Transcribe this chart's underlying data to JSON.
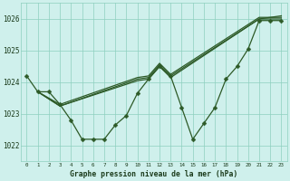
{
  "title": "Graphe pression niveau de la mer (hPa)",
  "background_color": "#cff0ec",
  "line_color": "#2d5a27",
  "grid_color": "#8ecfbf",
  "text_color": "#1a3a1a",
  "xlim_min": -0.5,
  "xlim_max": 23.5,
  "ylim_min": 1021.5,
  "ylim_max": 1026.5,
  "yticks": [
    1022,
    1023,
    1024,
    1025,
    1026
  ],
  "xticks": [
    0,
    1,
    2,
    3,
    4,
    5,
    6,
    7,
    8,
    9,
    10,
    11,
    12,
    13,
    14,
    15,
    16,
    17,
    18,
    19,
    20,
    21,
    22,
    23
  ],
  "series": [
    {
      "x": [
        0,
        1,
        2,
        3,
        4,
        5,
        6,
        7,
        8,
        9,
        10,
        11,
        12,
        13,
        14,
        15,
        16,
        17,
        18,
        19,
        20,
        21,
        22,
        23
      ],
      "y": [
        1024.2,
        1023.7,
        1023.7,
        1023.3,
        1022.8,
        1022.2,
        1022.2,
        1022.2,
        1022.65,
        1022.95,
        1023.65,
        1024.1,
        1024.5,
        1024.2,
        1023.2,
        1022.2,
        1022.7,
        1023.2,
        1024.1,
        1024.5,
        1025.05,
        1025.95,
        1025.95,
        1025.95
      ],
      "has_markers": true
    },
    {
      "x": [
        1,
        3,
        10,
        11,
        12,
        13,
        21,
        22,
        23
      ],
      "y": [
        1023.7,
        1023.25,
        1024.05,
        1024.1,
        1024.5,
        1024.15,
        1026.0,
        1026.0,
        1026.0
      ],
      "has_markers": false
    },
    {
      "x": [
        1,
        3,
        10,
        11,
        12,
        13,
        21,
        22,
        23
      ],
      "y": [
        1023.7,
        1023.25,
        1024.1,
        1024.15,
        1024.55,
        1024.2,
        1026.0,
        1026.05,
        1026.05
      ],
      "has_markers": false
    },
    {
      "x": [
        1,
        3,
        10,
        11,
        12,
        13,
        21,
        22,
        23
      ],
      "y": [
        1023.7,
        1023.3,
        1024.15,
        1024.2,
        1024.6,
        1024.25,
        1026.05,
        1026.05,
        1026.1
      ],
      "has_markers": false
    }
  ],
  "marker": "D",
  "markersize": 2.5,
  "linewidth": 0.9
}
